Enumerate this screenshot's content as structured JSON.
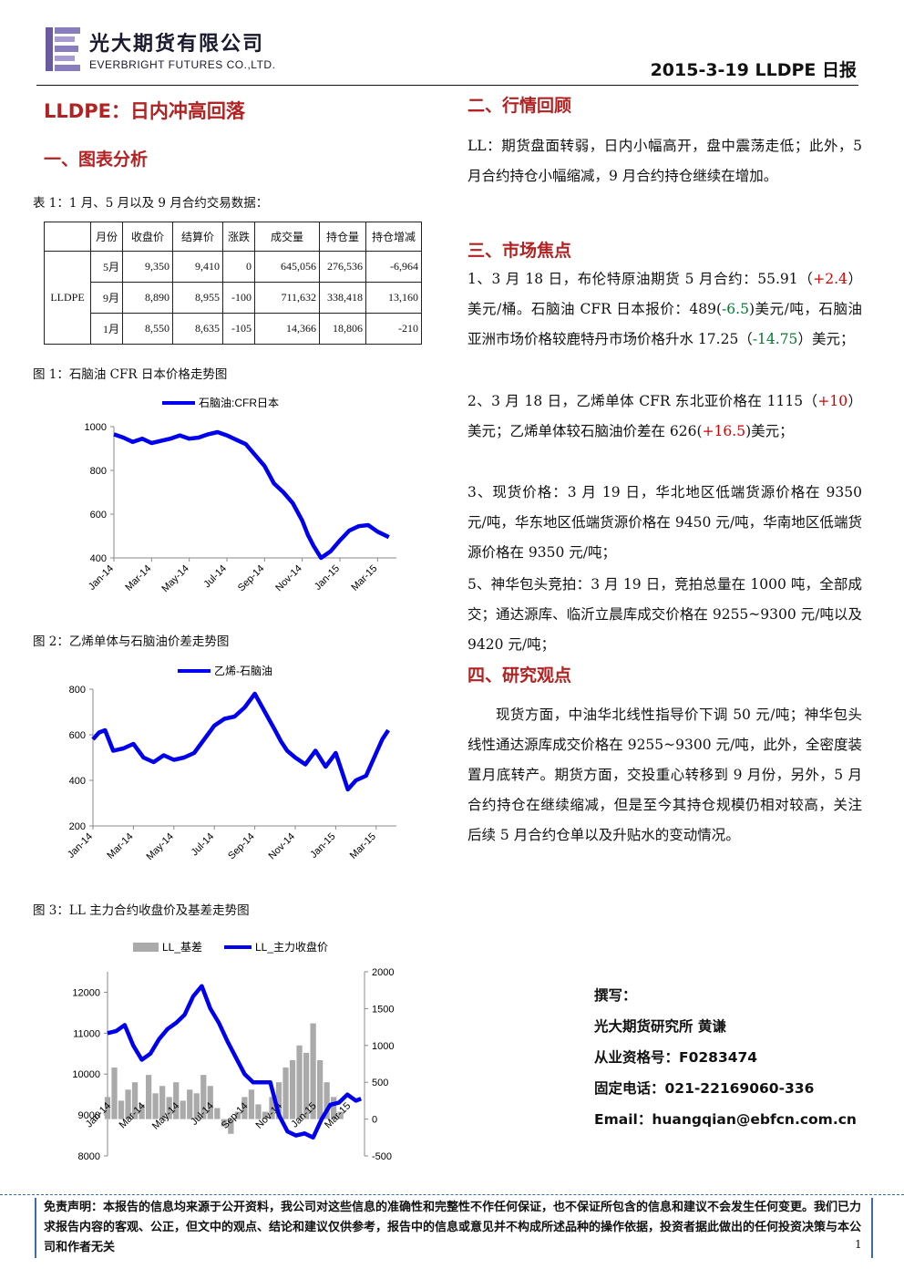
{
  "header": {
    "company_cn": "光大期货有限公司",
    "company_en": "EVERBRIGHT FUTURES CO.,LTD.",
    "report_id": "2015-3-19   LLDPE 日报"
  },
  "title": "LLDPE：日内冲高回落",
  "sections": {
    "s1": "一、图表分析",
    "s2": "二、行情回顾",
    "s3": "三、市场焦点",
    "s4": "四、研究观点"
  },
  "table1": {
    "caption": "表 1：1 月、5 月以及 9 月合约交易数据：",
    "headers": [
      "月份",
      "收盘价",
      "结算价",
      "涨跌",
      "成交量",
      "持仓量",
      "持仓增减"
    ],
    "product": "LLDPE",
    "rows": [
      [
        "5月",
        "9,350",
        "9,410",
        "0",
        "645,056",
        "276,536",
        "-6,964"
      ],
      [
        "9月",
        "8,890",
        "8,955",
        "-100",
        "711,632",
        "338,418",
        "13,160"
      ],
      [
        "1月",
        "8,550",
        "8,635",
        "-105",
        "14,366",
        "18,806",
        "-210"
      ]
    ]
  },
  "fig_captions": {
    "fig1": "图 1：石脑油 CFR 日本价格走势图",
    "fig2": "图 2：乙烯单体与石脑油价差走势图",
    "fig3": "图 3：LL 主力合约收盘价及基差走势图"
  },
  "chart_data": [
    {
      "type": "line",
      "legend": [
        "石脑油:CFR日本"
      ],
      "x_ticks": [
        "Jan-14",
        "Mar-14",
        "May-14",
        "Jul-14",
        "Sep-14",
        "Nov-14",
        "Jan-15",
        "Mar-15"
      ],
      "y_ticks": [
        "400",
        "600",
        "800",
        "1000"
      ],
      "ylim": [
        400,
        1000
      ],
      "color": "#0000ee",
      "x": [
        0,
        0.5,
        1,
        1.5,
        2,
        2.5,
        3,
        3.5,
        4,
        4.5,
        5,
        5.5,
        6,
        6.5,
        7,
        7.5,
        8,
        8.5,
        9,
        9.5,
        10,
        10.3,
        10.6,
        11,
        11.5,
        12,
        12.5,
        13,
        13.5,
        14,
        14.6
      ],
      "y": [
        965,
        950,
        930,
        945,
        925,
        935,
        945,
        960,
        945,
        950,
        965,
        975,
        960,
        940,
        920,
        870,
        820,
        740,
        700,
        650,
        570,
        505,
        455,
        400,
        430,
        480,
        525,
        545,
        550,
        520,
        495
      ]
    },
    {
      "type": "line",
      "legend": [
        "乙烯-石脑油"
      ],
      "x_ticks": [
        "Jan-14",
        "Mar-14",
        "May-14",
        "Jul-14",
        "Sep-14",
        "Nov-14",
        "Jan-15",
        "Mar-15"
      ],
      "y_ticks": [
        "200",
        "400",
        "600",
        "800"
      ],
      "ylim": [
        200,
        800
      ],
      "color": "#0000ee",
      "x": [
        0,
        0.3,
        0.6,
        1,
        1.5,
        2,
        2.5,
        3,
        3.5,
        4,
        4.5,
        5,
        5.5,
        6,
        6.5,
        7,
        7.5,
        8,
        8.5,
        9,
        9.3,
        9.6,
        10,
        10.5,
        11,
        11.5,
        12,
        12.3,
        12.6,
        13,
        13.5,
        14,
        14.3,
        14.6
      ],
      "y": [
        580,
        610,
        620,
        530,
        540,
        560,
        500,
        480,
        510,
        490,
        500,
        520,
        580,
        640,
        670,
        680,
        720,
        780,
        700,
        620,
        570,
        530,
        500,
        470,
        530,
        460,
        520,
        440,
        360,
        400,
        420,
        520,
        580,
        620
      ]
    },
    {
      "type": "bar+line",
      "legend": [
        "LL_基差",
        "LL_主力收盘价"
      ],
      "x_ticks": [
        "Jan-14",
        "Mar-14",
        "May-14",
        "Jul-14",
        "Sep-14",
        "Nov-14",
        "Jan-15",
        "Mar-15"
      ],
      "y_left_ticks": [
        "8000",
        "9000",
        "10000",
        "11000",
        "12000"
      ],
      "y_right_ticks": [
        "-500",
        "0",
        "500",
        "1000",
        "1500",
        "2000"
      ],
      "ylim_left": [
        8000,
        12500
      ],
      "ylim_right": [
        -500,
        2000
      ],
      "series": [
        {
          "name": "LL_基差",
          "color": "#aaaaaa",
          "x": [
            0,
            0.4,
            0.8,
            1.2,
            1.6,
            2,
            2.4,
            2.8,
            3.2,
            3.6,
            4,
            4.4,
            4.8,
            5.2,
            5.6,
            6,
            6.4,
            6.8,
            7.2,
            7.6,
            8,
            8.4,
            8.8,
            9.2,
            9.6,
            10,
            10.4,
            10.8,
            11.2,
            11.6,
            12,
            12.4,
            12.8,
            13.2,
            13.6,
            14
          ],
          "y": [
            300,
            700,
            250,
            400,
            500,
            200,
            600,
            350,
            450,
            300,
            500,
            250,
            400,
            350,
            600,
            450,
            150,
            -100,
            -200,
            100,
            300,
            400,
            200,
            100,
            300,
            500,
            700,
            800,
            1000,
            900,
            1300,
            800,
            500,
            300,
            100,
            0
          ]
        },
        {
          "name": "LL_主力收盘价",
          "color": "#0000ee",
          "x": [
            0,
            0.5,
            1,
            1.5,
            2,
            2.5,
            3,
            3.5,
            4,
            4.5,
            5,
            5.5,
            6,
            6.5,
            7,
            7.5,
            8,
            8.5,
            9,
            9.5,
            10,
            10.5,
            11,
            11.5,
            12,
            12.5,
            13,
            13.5,
            14,
            14.5,
            14.8
          ],
          "y": [
            11000,
            11050,
            11200,
            10700,
            10350,
            10500,
            10850,
            11100,
            11250,
            11450,
            11900,
            12150,
            11600,
            11250,
            10800,
            10400,
            10000,
            9800,
            9800,
            9800,
            9000,
            8600,
            8500,
            8550,
            8450,
            8900,
            9250,
            9300,
            9500,
            9350,
            9400
          ]
        }
      ]
    }
  ],
  "review": {
    "text": "LL：期货盘面转弱，日内小幅高开，盘中震荡走低；此外，5 月合约持仓小幅缩减，9 月合约持仓继续在增加。"
  },
  "focus": {
    "p1_a": "1、3 月 18 日，布伦特原油期货 5 月合约：55.91（",
    "p1_b": "+2.4",
    "p1_c": "）美元/桶。石脑油 CFR 日本报价：489(",
    "p1_d": "-6.5",
    "p1_e": ")美元/吨，石脑油亚洲市场价格较鹿特丹市场价格升水 17.25（",
    "p1_f": "-14.75",
    "p1_g": "）美元；",
    "p2_a": "2、3 月 18 日，乙烯单体 CFR 东北亚价格在 1115（",
    "p2_b": "+10",
    "p2_c": "）美元；乙烯单体较石脑油价差在 626(",
    "p2_d": "+16.5",
    "p2_e": ")美元；",
    "p3": "3、现货价格：3 月 19 日，华北地区低端货源价格在 9350 元/吨，华东地区低端货源价格在 9450 元/吨，华南地区低端货源价格在 9350 元/吨；",
    "p5": "5、神华包头竞拍：3 月 19 日，竞拍总量在 1000 吨，全部成交；通达源库、临沂立晨库成交价格在 9255~9300 元/吨以及 9420 元/吨；"
  },
  "view": {
    "text": "现货方面，中油华北线性指导价下调 50 元/吨；神华包头线性通达源库成交价格在 9255~9300 元/吨，此外，全密度装置月底转产。期货方面，交投重心转移到 9 月份，另外，5 月合约持仓在继续缩减，但是至今其持仓规模仍相对较高，关注后续 5 月合约仓单以及升贴水的变动情况。"
  },
  "author": {
    "label": "撰写：",
    "org": "光大期货研究所    黄谦",
    "license": "从业资格号：F0283474",
    "phone": "固定电话：021-22169060-336",
    "email": "Email：huangqian@ebfcn.com.cn"
  },
  "disclaimer": "免责声明：本报告的信息均来源于公开资料，我公司对这些信息的准确性和完整性不作任何保证，也不保证所包含的信息和建议不会发生任何变更。我们已力求报告内容的客观、公正，但文中的观点、结论和建议仅供参考，报告中的信息或意见并不构成所述品种的操作依据，投资者据此做出的任何投资决策与本公司和作者无关",
  "page_number": "1"
}
